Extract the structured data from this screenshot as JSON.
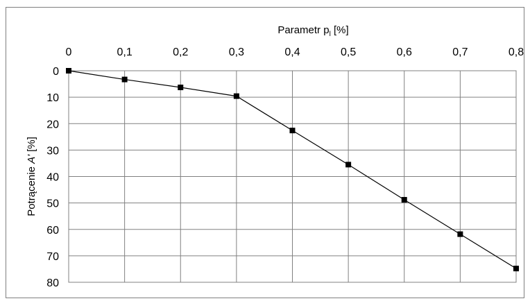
{
  "chart_data": {
    "type": "line",
    "xlabel": "Parametr p",
    "xlabel_subscript": "l",
    "xlabel_unit": " [%]",
    "ylabel": "Potrącenie ",
    "ylabel_italic": "A'",
    "ylabel_unit": " [%]",
    "x_axis_position": "top",
    "y_axis_inverted": true,
    "xlim": [
      0,
      0.8
    ],
    "ylim": [
      0,
      80
    ],
    "x_ticks": [
      0,
      0.1,
      0.2,
      0.3,
      0.4,
      0.5,
      0.6,
      0.7,
      0.8
    ],
    "x_tick_labels": [
      "0",
      "0,1",
      "0,2",
      "0,3",
      "0,4",
      "0,5",
      "0,6",
      "0,7",
      "0,8"
    ],
    "y_ticks": [
      0,
      10,
      20,
      30,
      40,
      50,
      60,
      70,
      80
    ],
    "y_tick_labels": [
      "0",
      "10",
      "20",
      "30",
      "40",
      "50",
      "60",
      "70",
      "80"
    ],
    "grid": true,
    "series": [
      {
        "x": [
          0,
          0.1,
          0.2,
          0.3,
          0.4,
          0.5,
          0.6,
          0.7,
          0.8
        ],
        "y": [
          0,
          3.3,
          6.3,
          9.6,
          22.6,
          35.5,
          48.8,
          61.8,
          74.8
        ],
        "color": "#000000",
        "marker": "square"
      }
    ]
  }
}
